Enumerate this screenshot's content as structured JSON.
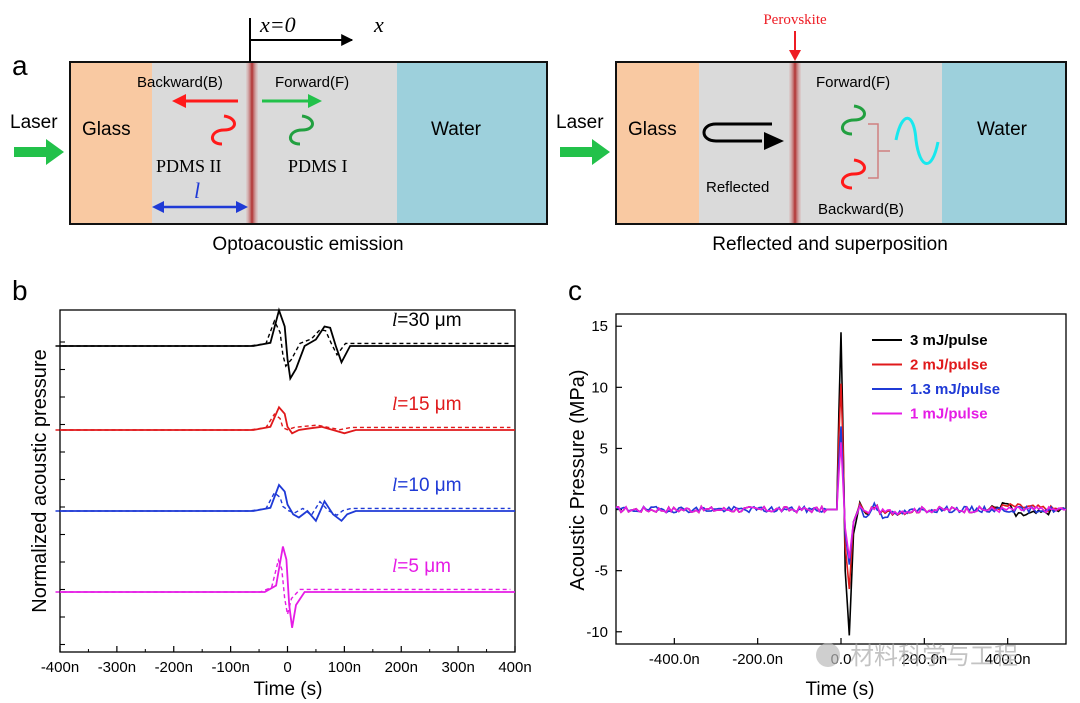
{
  "panel_a": {
    "label": "a",
    "left": {
      "laser": "Laser",
      "glass": "Glass",
      "water": "Water",
      "x0": "x=0",
      "x": "x",
      "backward": "Backward(B)",
      "forward": "Forward(F)",
      "pdms2": "PDMS II",
      "pdms1": "PDMS I",
      "l": "l",
      "caption": "Optoacoustic emission"
    },
    "right": {
      "laser": "Laser",
      "glass": "Glass",
      "water": "Water",
      "perovskite": "Perovskite",
      "forward": "Forward(F)",
      "backward": "Backward(B)",
      "reflected": "Reflected",
      "caption": "Reflected and superposition"
    }
  },
  "panel_b": {
    "label": "b",
    "ylabel": "Normalized acoustic pressure",
    "xlabel": "Time (s)",
    "curve_labels": [
      {
        "italic": "l",
        "rest": "=30 μm",
        "color": "#000000"
      },
      {
        "italic": "l",
        "rest": "=15 μm",
        "color": "#e0191b"
      },
      {
        "italic": "l",
        "rest": "=10 μm",
        "color": "#1f3ad6"
      },
      {
        "italic": "l",
        "rest": "=5 μm",
        "color": "#e51ce5"
      }
    ]
  },
  "panel_c": {
    "label": "c",
    "ylabel": "Acoustic Pressure (MPa)",
    "xlabel": "Time (s)",
    "legend": [
      {
        "label": "3 mJ/pulse",
        "color": "#000000"
      },
      {
        "label": "2 mJ/pulse",
        "color": "#e0191b"
      },
      {
        "label": "1.3 mJ/pulse",
        "color": "#1f3ad6"
      },
      {
        "label": "1 mJ/pulse",
        "color": "#e51ce5"
      }
    ]
  },
  "watermark": "材料科学与工程",
  "chart_data": [
    {
      "type": "line",
      "title": "b",
      "xlabel": "Time (s)",
      "ylabel": "Normalized acoustic pressure",
      "xlim": [
        -400,
        400
      ],
      "x_unit": "ns",
      "x_ticks": [
        "-400n",
        "-300n",
        "-200n",
        "-100n",
        "0",
        "100n",
        "200n",
        "300n",
        "400n"
      ],
      "grid": false,
      "series": [
        {
          "name": "l=30 μm",
          "color": "#000000",
          "offset": 3,
          "x": [
            -400,
            -60,
            -30,
            -15,
            -5,
            0,
            5,
            15,
            30,
            50,
            65,
            75,
            85,
            95,
            110,
            400
          ],
          "y": [
            0,
            0,
            0.05,
            0.55,
            0.3,
            -0.2,
            -0.5,
            -0.35,
            0,
            0.1,
            0.3,
            0.28,
            0,
            -0.25,
            0,
            0
          ]
        },
        {
          "name": "l=15 μm",
          "color": "#e0191b",
          "offset": 2,
          "x": [
            -400,
            -60,
            -30,
            -15,
            -5,
            0,
            8,
            20,
            35,
            60,
            80,
            100,
            120,
            400
          ],
          "y": [
            0,
            0,
            0.05,
            0.35,
            0.25,
            0.05,
            -0.05,
            0,
            0.02,
            0.05,
            0,
            -0.05,
            0,
            0
          ]
        },
        {
          "name": "l=10 μm",
          "color": "#1f3ad6",
          "offset": 1,
          "x": [
            -400,
            -60,
            -30,
            -15,
            -5,
            0,
            10,
            20,
            35,
            50,
            65,
            80,
            95,
            105,
            120,
            400
          ],
          "y": [
            0,
            0,
            0.05,
            0.4,
            0.3,
            0.1,
            -0.05,
            -0.1,
            0,
            -0.15,
            0.15,
            -0.05,
            -0.15,
            -0.05,
            0,
            0
          ]
        },
        {
          "name": "l=5 μm",
          "color": "#e51ce5",
          "offset": 0,
          "x": [
            -400,
            -40,
            -20,
            -8,
            -2,
            3,
            8,
            15,
            30,
            400
          ],
          "y": [
            0,
            0,
            0.1,
            0.7,
            0.5,
            -0.2,
            -0.55,
            -0.2,
            0,
            0
          ]
        }
      ]
    },
    {
      "type": "line",
      "title": "c",
      "xlabel": "Time (s)",
      "ylabel": "Acoustic Pressure (MPa)",
      "xlim": [
        -540,
        540
      ],
      "ylim": [
        -11,
        16
      ],
      "x_unit": "ns",
      "x_ticks": [
        "-400.0n",
        "-200.0n",
        "0.0",
        "200.0n",
        "400.0n"
      ],
      "y_ticks": [
        15,
        10,
        5,
        0,
        -5,
        -10
      ],
      "grid": false,
      "legend_position": "top-right",
      "series": [
        {
          "name": "3 mJ/pulse",
          "color": "#000000",
          "x": [
            -540,
            -10,
            -5,
            0,
            5,
            10,
            20,
            30,
            45,
            60,
            80,
            100,
            200,
            350,
            400,
            420,
            540
          ],
          "y": [
            0,
            0,
            8,
            14.5,
            6,
            -5,
            -10.3,
            -2,
            0.5,
            -0.5,
            0.3,
            -0.3,
            0,
            0,
            0.5,
            -0.5,
            0
          ]
        },
        {
          "name": "2 mJ/pulse",
          "color": "#e0191b",
          "x": [
            -540,
            -10,
            -5,
            0,
            5,
            10,
            20,
            30,
            45,
            60,
            80,
            100,
            200,
            350,
            400,
            540
          ],
          "y": [
            0,
            0,
            6,
            10.3,
            5,
            -3,
            -6.5,
            -1,
            0.4,
            -0.4,
            0.3,
            -0.3,
            0,
            0,
            0.3,
            0
          ]
        },
        {
          "name": "1.3 mJ/pulse",
          "color": "#1f3ad6",
          "x": [
            -540,
            -10,
            -5,
            0,
            5,
            10,
            20,
            30,
            45,
            60,
            80,
            100,
            200,
            350,
            540
          ],
          "y": [
            0,
            0,
            4,
            6.8,
            3,
            -2,
            -4.5,
            -1,
            0.3,
            -0.8,
            0.5,
            -0.5,
            0,
            0,
            0
          ]
        },
        {
          "name": "1 mJ/pulse",
          "color": "#e51ce5",
          "x": [
            -540,
            -10,
            -5,
            0,
            5,
            10,
            20,
            30,
            45,
            60,
            80,
            100,
            200,
            350,
            540
          ],
          "y": [
            0,
            0,
            3,
            5.5,
            2,
            -1.5,
            -4,
            -1,
            0.2,
            -0.3,
            0.2,
            -0.2,
            0,
            0,
            0
          ]
        }
      ]
    }
  ]
}
